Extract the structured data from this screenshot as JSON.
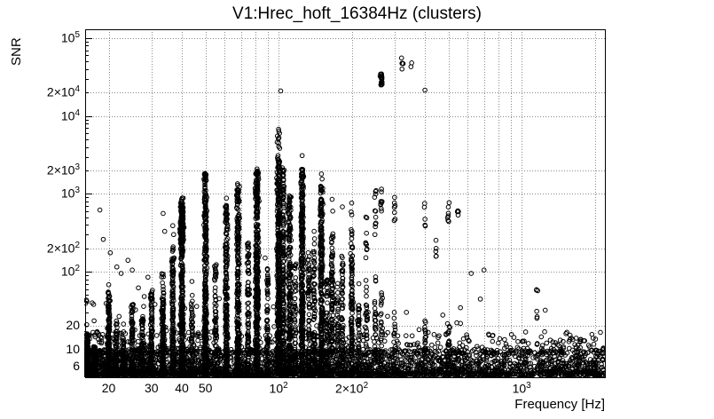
{
  "chart_data": {
    "type": "scatter",
    "title": "V1:Hrec_hoft_16384Hz (clusters)",
    "xlabel": "Frequency [Hz]",
    "ylabel": "SNR",
    "x_scale": "log",
    "y_scale": "log",
    "x_range": [
      16,
      2200
    ],
    "y_range": [
      4.4,
      130000
    ],
    "marker": {
      "shape": "open-circle",
      "color": "#000000",
      "radius": 2.3
    },
    "grid": {
      "style": "dotted",
      "color": "#8a8a8a"
    },
    "x_ticks": [
      {
        "v": 20,
        "base": "20"
      },
      {
        "v": 30,
        "base": "30"
      },
      {
        "v": 40,
        "base": "40"
      },
      {
        "v": 50,
        "base": "50"
      },
      {
        "v": 100,
        "base": "10",
        "sup": "2"
      },
      {
        "v": 200,
        "base": "2×10",
        "sup": "2"
      },
      {
        "v": 1000,
        "base": "10",
        "sup": "3"
      }
    ],
    "y_ticks": [
      {
        "v": 6,
        "base": "6"
      },
      {
        "v": 10,
        "base": "10"
      },
      {
        "v": 20,
        "base": "20"
      },
      {
        "v": 100,
        "base": "10",
        "sup": "2"
      },
      {
        "v": 200,
        "base": "2×10",
        "sup": "2"
      },
      {
        "v": 1000,
        "base": "10",
        "sup": "3"
      },
      {
        "v": 2000,
        "base": "2×10",
        "sup": "3"
      },
      {
        "v": 10000,
        "base": "10",
        "sup": "4"
      },
      {
        "v": 20000,
        "base": "2×10",
        "sup": "4"
      },
      {
        "v": 100000,
        "base": "10",
        "sup": "5"
      }
    ],
    "x_gridlines": [
      20,
      30,
      40,
      50,
      60,
      70,
      80,
      90,
      100,
      200,
      300,
      400,
      500,
      600,
      700,
      800,
      900,
      1000,
      2000
    ],
    "y_gridlines": [
      6,
      10,
      20,
      100,
      200,
      1000,
      2000,
      10000,
      20000,
      100000
    ],
    "clusters": [
      {
        "f": 16.3,
        "snr_lo": 4.7,
        "snr_hi": 16,
        "n": 130
      },
      {
        "f": 17.5,
        "snr_lo": 4.7,
        "snr_hi": 11,
        "n": 60
      },
      {
        "f": 20,
        "snr_lo": 4.7,
        "snr_hi": 55,
        "n": 150
      },
      {
        "f": 21.5,
        "snr_lo": 4.7,
        "snr_hi": 22,
        "n": 60
      },
      {
        "f": 23,
        "snr_lo": 4.7,
        "snr_hi": 16,
        "n": 50
      },
      {
        "f": 25,
        "snr_lo": 4.7,
        "snr_hi": 38,
        "n": 85
      },
      {
        "f": 27.5,
        "snr_lo": 4.7,
        "snr_hi": 28,
        "n": 60
      },
      {
        "f": 30,
        "snr_lo": 4.7,
        "snr_hi": 60,
        "n": 110
      },
      {
        "f": 33.4,
        "snr_lo": 4.7,
        "snr_hi": 95,
        "n": 140
      },
      {
        "f": 36.7,
        "snr_lo": 4.7,
        "snr_hi": 210,
        "n": 140
      },
      {
        "f": 40,
        "snr_lo": 4.7,
        "snr_hi": 900,
        "n": 300,
        "jitter": 2.2
      },
      {
        "f": 40,
        "snr_lo": 230,
        "snr_hi": 680,
        "n": 110,
        "jitter": 2.8
      },
      {
        "f": 44,
        "snr_lo": 4.7,
        "snr_hi": 55,
        "n": 55
      },
      {
        "f": 50,
        "snr_lo": 4.7,
        "snr_hi": 1900,
        "n": 340,
        "jitter": 2.2
      },
      {
        "f": 55,
        "snr_lo": 4.7,
        "snr_hi": 130,
        "n": 70
      },
      {
        "f": 61,
        "snr_lo": 4.7,
        "snr_hi": 720,
        "n": 220,
        "jitter": 2.2
      },
      {
        "f": 68,
        "snr_lo": 4.7,
        "snr_hi": 1350,
        "n": 260,
        "jitter": 2.2
      },
      {
        "f": 75,
        "snr_lo": 4.7,
        "snr_hi": 240,
        "n": 90
      },
      {
        "f": 81.5,
        "snr_lo": 4.7,
        "snr_hi": 2100,
        "n": 380,
        "jitter": 2.6
      },
      {
        "f": 90,
        "snr_lo": 4.7,
        "snr_hi": 110,
        "n": 70
      },
      {
        "f": 100,
        "snr_lo": 4.7,
        "snr_hi": 2700,
        "n": 430,
        "jitter": 2.6
      },
      {
        "f": 100,
        "snr_lo": 2700,
        "snr_hi": 7000,
        "n": 16,
        "jitter": 2.6
      },
      {
        "f": 104.5,
        "snr_lo": 4.7,
        "snr_hi": 2300,
        "n": 190
      },
      {
        "f": 111,
        "snr_lo": 4.7,
        "snr_hi": 1050,
        "n": 220,
        "jitter": 2.2
      },
      {
        "f": 117,
        "snr_lo": 4.7,
        "snr_hi": 140,
        "n": 60
      },
      {
        "f": 125,
        "snr_lo": 4.7,
        "snr_hi": 2100,
        "n": 330,
        "jitter": 2.2
      },
      {
        "f": 133,
        "snr_lo": 4.7,
        "snr_hi": 190,
        "n": 75
      },
      {
        "f": 140,
        "snr_lo": 4.7,
        "snr_hi": 280,
        "n": 85
      },
      {
        "f": 150,
        "snr_lo": 4.7,
        "snr_hi": 1300,
        "n": 280,
        "jitter": 2.2
      },
      {
        "f": 158,
        "snr_lo": 4.7,
        "snr_hi": 90,
        "n": 55
      },
      {
        "f": 166,
        "snr_lo": 4.7,
        "snr_hi": 340,
        "n": 105
      },
      {
        "f": 175,
        "snr_lo": 4.7,
        "snr_hi": 75,
        "n": 45
      },
      {
        "f": 183,
        "snr_lo": 4.7,
        "snr_hi": 160,
        "n": 75
      },
      {
        "f": 200,
        "snr_lo": 4.7,
        "snr_hi": 180,
        "n": 110
      },
      {
        "f": 200,
        "snr_lo": 200,
        "snr_hi": 950,
        "n": 12,
        "jitter": 1.4
      },
      {
        "f": 214,
        "snr_lo": 4.7,
        "snr_hi": 40,
        "n": 35
      },
      {
        "f": 230,
        "snr_lo": 4.7,
        "snr_hi": 90,
        "n": 35
      },
      {
        "f": 230,
        "snr_lo": 150,
        "snr_hi": 880,
        "n": 9,
        "jitter": 1.4
      },
      {
        "f": 250,
        "snr_lo": 4.7,
        "snr_hi": 110,
        "n": 35
      },
      {
        "f": 250,
        "snr_lo": 200,
        "snr_hi": 1500,
        "n": 11,
        "jitter": 1.4
      },
      {
        "f": 265,
        "snr_lo": 4.7,
        "snr_hi": 55,
        "n": 28
      },
      {
        "f": 265,
        "snr_lo": 600,
        "snr_hi": 1200,
        "n": 8,
        "jitter": 1.4
      },
      {
        "f": 265,
        "snr_lo": 25000,
        "snr_hi": 35000,
        "n": 26,
        "jitter": 1.8
      },
      {
        "f": 300,
        "snr_lo": 4.7,
        "snr_hi": 35,
        "n": 22
      },
      {
        "f": 300,
        "snr_lo": 450,
        "snr_hi": 950,
        "n": 6,
        "jitter": 1.4
      },
      {
        "f": 322,
        "snr_lo": 40000,
        "snr_hi": 58000,
        "n": 5,
        "jitter": 3.5
      },
      {
        "f": 352,
        "snr_lo": 42000,
        "snr_hi": 50000,
        "n": 2,
        "jitter": 2
      },
      {
        "f": 400,
        "snr_lo": 4.7,
        "snr_hi": 28,
        "n": 20
      },
      {
        "f": 400,
        "snr_lo": 380,
        "snr_hi": 780,
        "n": 5,
        "jitter": 1.4
      },
      {
        "f": 444,
        "snr_lo": 140,
        "snr_hi": 300,
        "n": 5,
        "jitter": 1.4
      },
      {
        "f": 500,
        "snr_lo": 4.7,
        "snr_hi": 22,
        "n": 28
      },
      {
        "f": 500,
        "snr_lo": 430,
        "snr_hi": 800,
        "n": 7,
        "jitter": 1.4
      },
      {
        "f": 545,
        "snr_lo": 480,
        "snr_hi": 720,
        "n": 4,
        "jitter": 1.4
      },
      {
        "f": 1150,
        "snr_lo": 22,
        "snr_hi": 60,
        "n": 5,
        "jitter": 2
      },
      {
        "f": 1450,
        "snr_lo": 9,
        "snr_hi": 15,
        "n": 4,
        "jitter": 2
      },
      {
        "f": 1750,
        "snr_lo": 10,
        "snr_hi": 14,
        "n": 3,
        "jitter": 2
      }
    ],
    "outliers": [
      [
        18.4,
        620
      ],
      [
        19,
        260
      ],
      [
        20.3,
        175
      ],
      [
        21.6,
        115
      ],
      [
        20,
        68
      ],
      [
        22.5,
        95
      ],
      [
        24,
        140
      ],
      [
        25,
        105
      ],
      [
        26.5,
        62
      ],
      [
        28,
        48
      ],
      [
        29,
        85
      ],
      [
        31,
        38
      ],
      [
        33.5,
        560
      ],
      [
        34,
        330
      ],
      [
        36.7,
        390
      ],
      [
        37,
        300
      ],
      [
        44,
        75
      ],
      [
        57,
        45
      ],
      [
        61,
        880
      ],
      [
        88,
        150
      ],
      [
        102,
        21000
      ],
      [
        125,
        3100
      ],
      [
        140,
        330
      ],
      [
        150,
        1800
      ],
      [
        151,
        1550
      ],
      [
        166,
        850
      ],
      [
        167,
        600
      ],
      [
        183,
        680
      ],
      [
        214,
        70
      ],
      [
        265,
        1150
      ],
      [
        300,
        900
      ],
      [
        400,
        21500
      ],
      [
        620,
        95
      ],
      [
        700,
        105
      ],
      [
        1150,
        58
      ],
      [
        1250,
        32
      ],
      [
        1600,
        14
      ],
      [
        1800,
        13
      ]
    ],
    "background_bands": [
      {
        "f_min": 16,
        "f_max": 2200,
        "snr_min": 4.7,
        "snr_max": 10,
        "n": 3000,
        "bias": 1.25
      },
      {
        "f_min": 16,
        "f_max": 2200,
        "snr_min": 9,
        "snr_max": 17,
        "n": 480,
        "bias": 1.35
      },
      {
        "f_min": 16,
        "f_max": 800,
        "snr_min": 15,
        "snr_max": 45,
        "n": 90,
        "bias": 1.5
      }
    ]
  }
}
